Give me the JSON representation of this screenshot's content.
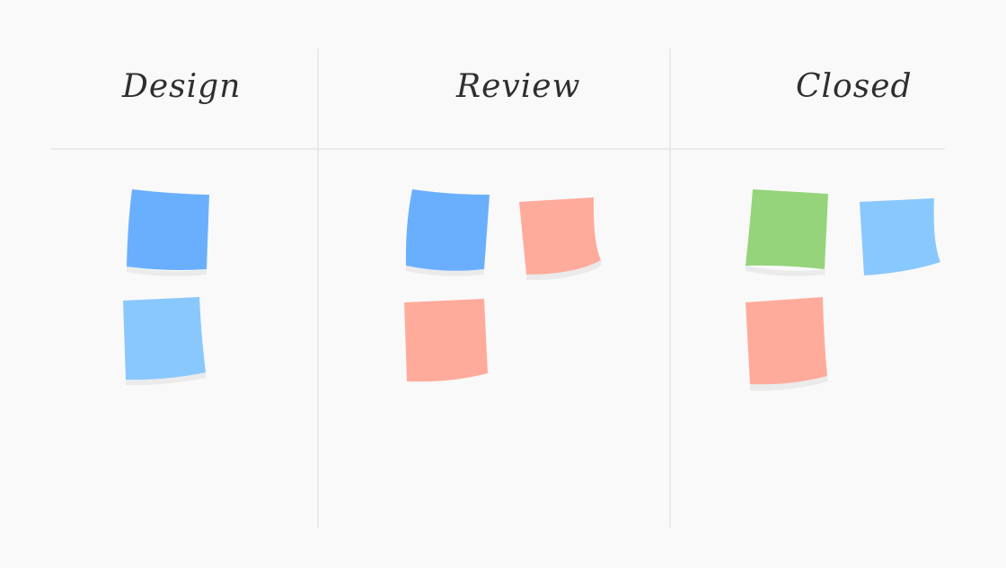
{
  "columns": [
    {
      "title": "Design",
      "notes": [
        {
          "color": "#6aaffe"
        },
        {
          "color": "#89c8fd"
        }
      ]
    },
    {
      "title": "Review",
      "notes": [
        {
          "color": "#6aaffe"
        },
        {
          "color": "#ffab9c"
        },
        {
          "color": "#ffab9c"
        }
      ]
    },
    {
      "title": "Closed",
      "notes": [
        {
          "color": "#95d47a"
        },
        {
          "color": "#89c8fd"
        },
        {
          "color": "#ffab9c"
        }
      ]
    }
  ],
  "colors": {
    "background": "#f9f9f9",
    "divider": "#e6e6e6",
    "shadow": "#e9e9e9",
    "title": "#2f2f2f"
  }
}
